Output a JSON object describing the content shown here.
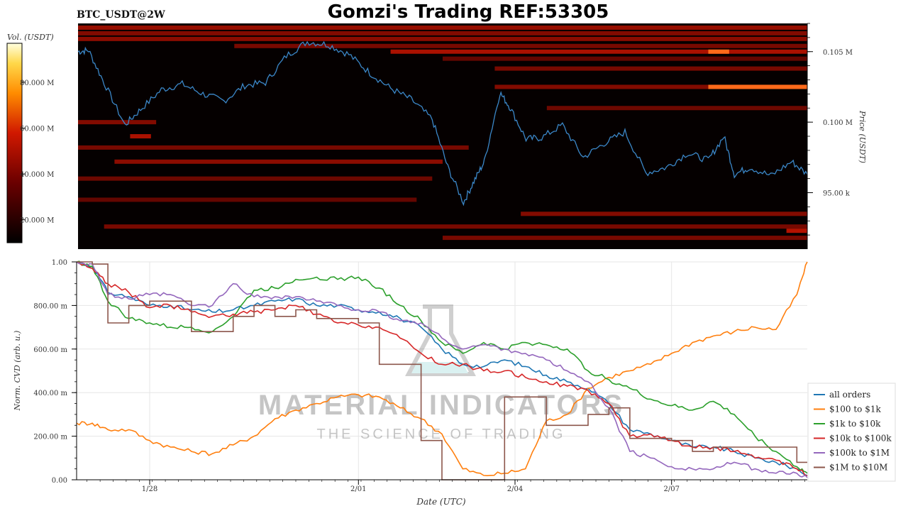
{
  "header": {
    "symbol": "BTC_USDT@2W",
    "title": "Gomzi's Trading REF:53305"
  },
  "watermark": {
    "line1": "MATERIAL INDICATORS",
    "line2": "THE SCIENCE OF TRADING"
  },
  "colors": {
    "all_orders": "#1f77b4",
    "o100_1k": "#ff7f0e",
    "o1k_10k": "#2ca02c",
    "o10k_100k": "#d62728",
    "o100k_1m": "#9467bd",
    "o1m_10m": "#8c564b",
    "price_line": "#3b87c8",
    "heat_bg": "#050000"
  },
  "chart_data": [
    {
      "type": "heatmap",
      "title": "BTC_USDT@2W",
      "colorbar": {
        "label": "Vol. (USDT)",
        "ticks": [
          "20.000 M",
          "40.000 M",
          "60.000 M",
          "80.000 M"
        ],
        "tick_values": [
          20,
          40,
          60,
          80
        ],
        "range": [
          10,
          97
        ]
      },
      "ylabel": "Price (USDT)",
      "price_ticks": [
        "95.00 k",
        "0.100 M",
        "0.105 M"
      ],
      "price_tick_values": [
        95000,
        100000,
        105000
      ],
      "ylim": [
        91000,
        107000
      ],
      "bands": [
        {
          "price": 106700,
          "t0": 0,
          "t1": 14,
          "level": 0.45
        },
        {
          "price": 106300,
          "t0": 0,
          "t1": 14,
          "level": 0.35
        },
        {
          "price": 105900,
          "t0": 0,
          "t1": 14,
          "level": 0.4
        },
        {
          "price": 105400,
          "t0": 3,
          "t1": 14,
          "level": 0.3
        },
        {
          "price": 105000,
          "t0": 6,
          "t1": 14,
          "level": 0.55
        },
        {
          "price": 105000,
          "t0": 12.1,
          "t1": 12.5,
          "level": 0.9
        },
        {
          "price": 104500,
          "t0": 7,
          "t1": 14,
          "level": 0.2
        },
        {
          "price": 103800,
          "t0": 8,
          "t1": 14,
          "level": 0.3
        },
        {
          "price": 102500,
          "t0": 12.1,
          "t1": 14,
          "level": 0.95
        },
        {
          "price": 102500,
          "t0": 8,
          "t1": 12.1,
          "level": 0.35
        },
        {
          "price": 101000,
          "t0": 9,
          "t1": 14,
          "level": 0.25
        },
        {
          "price": 100000,
          "t0": 0,
          "t1": 1.5,
          "level": 0.35
        },
        {
          "price": 99000,
          "t0": 1,
          "t1": 1.4,
          "level": 0.55
        },
        {
          "price": 98200,
          "t0": 0,
          "t1": 7.5,
          "level": 0.3
        },
        {
          "price": 97200,
          "t0": 0.7,
          "t1": 7.0,
          "level": 0.4
        },
        {
          "price": 96000,
          "t0": 0,
          "t1": 6.8,
          "level": 0.25
        },
        {
          "price": 94500,
          "t0": 0,
          "t1": 6.5,
          "level": 0.2
        },
        {
          "price": 93500,
          "t0": 8.5,
          "t1": 14,
          "level": 0.35
        },
        {
          "price": 92600,
          "t0": 0.5,
          "t1": 14,
          "level": 0.3
        },
        {
          "price": 92300,
          "t0": 13.6,
          "t1": 14,
          "level": 0.6
        },
        {
          "price": 91800,
          "t0": 7,
          "t1": 14,
          "level": 0.3
        }
      ],
      "price_series": {
        "t": [
          0,
          0.2,
          0.5,
          0.9,
          1.2,
          1.6,
          2.0,
          2.4,
          2.8,
          3.2,
          3.6,
          4.0,
          4.4,
          4.8,
          5.2,
          5.6,
          6.0,
          6.4,
          6.8,
          7.1,
          7.4,
          7.6,
          7.8,
          8.1,
          8.3,
          8.6,
          8.9,
          9.3,
          9.7,
          10.1,
          10.5,
          10.9,
          11.3,
          11.7,
          12.1,
          12.4,
          12.6,
          12.9,
          13.3,
          13.7,
          14.0
        ],
        "price": [
          105000,
          105100,
          102800,
          99800,
          100900,
          102300,
          102700,
          102000,
          101500,
          102600,
          102800,
          104700,
          105700,
          105500,
          104800,
          103500,
          102400,
          101600,
          100200,
          96800,
          94300,
          95800,
          97200,
          102100,
          101000,
          98800,
          98900,
          99800,
          97500,
          98500,
          99300,
          96400,
          96800,
          97800,
          97300,
          99000,
          96300,
          96800,
          96200,
          97200,
          96300
        ]
      }
    },
    {
      "type": "line",
      "xlabel": "Date (UTC)",
      "ylabel": "Norm. CVD (arb. u.)",
      "x_ticks": [
        "1/28",
        "2/01",
        "2/04",
        "2/07"
      ],
      "x_tick_values": [
        1.4,
        5.4,
        8.4,
        11.4
      ],
      "xlim": [
        0,
        14
      ],
      "ylim": [
        0,
        1
      ],
      "y_ticks": [
        "0.00",
        "200.00 m",
        "400.00 m",
        "600.00 m",
        "800.00 m",
        "1.00"
      ],
      "y_tick_values": [
        0,
        0.2,
        0.4,
        0.6,
        0.8,
        1.0
      ],
      "grid": true,
      "legend_position": "bottom-right",
      "x": [
        0,
        0.3,
        0.6,
        1.0,
        1.4,
        1.8,
        2.2,
        2.6,
        3.0,
        3.4,
        3.8,
        4.2,
        4.6,
        5.0,
        5.4,
        5.8,
        6.2,
        6.6,
        7.0,
        7.4,
        7.8,
        8.2,
        8.6,
        9.0,
        9.4,
        9.8,
        10.2,
        10.6,
        11.0,
        11.4,
        11.8,
        12.2,
        12.6,
        13.0,
        13.4,
        13.8,
        14.0
      ],
      "series": [
        {
          "name": "all orders",
          "color_key": "all_orders",
          "values": [
            1.0,
            0.98,
            0.86,
            0.84,
            0.8,
            0.8,
            0.78,
            0.77,
            0.78,
            0.8,
            0.82,
            0.83,
            0.8,
            0.8,
            0.78,
            0.77,
            0.74,
            0.7,
            0.6,
            0.53,
            0.52,
            0.55,
            0.52,
            0.48,
            0.45,
            0.42,
            0.35,
            0.23,
            0.21,
            0.18,
            0.15,
            0.15,
            0.13,
            0.1,
            0.08,
            0.05,
            0.02
          ]
        },
        {
          "name": "$100 to $1k",
          "color_key": "o100_1k",
          "values": [
            0.26,
            0.26,
            0.23,
            0.23,
            0.18,
            0.15,
            0.13,
            0.12,
            0.16,
            0.2,
            0.28,
            0.32,
            0.35,
            0.38,
            0.39,
            0.38,
            0.33,
            0.28,
            0.21,
            0.05,
            0.02,
            0.03,
            0.05,
            0.27,
            0.3,
            0.42,
            0.47,
            0.5,
            0.53,
            0.58,
            0.63,
            0.66,
            0.68,
            0.7,
            0.69,
            0.85,
            1.0
          ]
        },
        {
          "name": "$1k to $10k",
          "color_key": "o1k_10k",
          "values": [
            1.0,
            0.98,
            0.82,
            0.74,
            0.72,
            0.7,
            0.7,
            0.68,
            0.75,
            0.87,
            0.88,
            0.92,
            0.93,
            0.92,
            0.93,
            0.88,
            0.8,
            0.73,
            0.63,
            0.58,
            0.63,
            0.6,
            0.63,
            0.62,
            0.6,
            0.5,
            0.46,
            0.42,
            0.37,
            0.34,
            0.32,
            0.36,
            0.3,
            0.2,
            0.13,
            0.06,
            0.03
          ]
        },
        {
          "name": "$10k to $100k",
          "color_key": "o10k_100k",
          "values": [
            1.0,
            0.97,
            0.9,
            0.86,
            0.79,
            0.8,
            0.77,
            0.75,
            0.76,
            0.77,
            0.78,
            0.8,
            0.76,
            0.72,
            0.71,
            0.7,
            0.65,
            0.58,
            0.53,
            0.53,
            0.5,
            0.5,
            0.47,
            0.45,
            0.43,
            0.41,
            0.35,
            0.2,
            0.21,
            0.18,
            0.15,
            0.15,
            0.13,
            0.1,
            0.09,
            0.05,
            0.02
          ]
        },
        {
          "name": "$100k to $1M",
          "color_key": "o100k_1m",
          "values": [
            1.0,
            0.99,
            0.85,
            0.83,
            0.85,
            0.85,
            0.8,
            0.8,
            0.9,
            0.84,
            0.84,
            0.84,
            0.82,
            0.8,
            0.78,
            0.77,
            0.73,
            0.72,
            0.65,
            0.6,
            0.62,
            0.6,
            0.58,
            0.55,
            0.5,
            0.45,
            0.33,
            0.13,
            0.1,
            0.06,
            0.05,
            0.05,
            0.08,
            0.05,
            0.03,
            0.03,
            0.01
          ]
        },
        {
          "name": "$1M to $10M",
          "color_key": "o1m_10m",
          "values": [
            1.0,
            0.99,
            0.72,
            0.8,
            0.82,
            0.82,
            0.68,
            0.68,
            0.75,
            0.8,
            0.75,
            0.78,
            0.74,
            0.74,
            0.72,
            0.53,
            0.53,
            0.18,
            0.0,
            0.0,
            0.0,
            0.38,
            0.38,
            0.25,
            0.25,
            0.3,
            0.33,
            0.19,
            0.19,
            0.18,
            0.13,
            0.15,
            0.15,
            0.15,
            0.15,
            0.08,
            0.08
          ]
        }
      ]
    }
  ]
}
